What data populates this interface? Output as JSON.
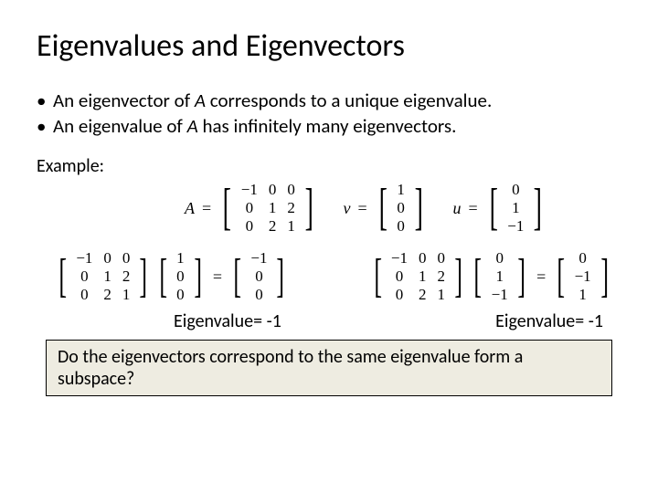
{
  "title": "Eigenvalues and Eigenvectors",
  "bullets": [
    {
      "pre": "An eigenvector of ",
      "mid_italic": "A",
      "post": " corresponds to a unique eigenvalue."
    },
    {
      "pre": "An eigenvalue of ",
      "mid_italic": "A",
      "post": " has infinitely many eigenvectors."
    }
  ],
  "example_label": "Example:",
  "defs": {
    "A_label": "A",
    "A": [
      [
        "−1",
        "0",
        "0"
      ],
      [
        "0",
        "1",
        "2"
      ],
      [
        "0",
        "2",
        "1"
      ]
    ],
    "v_label": "v",
    "v": [
      [
        "1"
      ],
      [
        "0"
      ],
      [
        "0"
      ]
    ],
    "u_label": "u",
    "u": [
      [
        "0"
      ],
      [
        "1"
      ],
      [
        "−1"
      ]
    ]
  },
  "eq1": {
    "M": [
      [
        "−1",
        "0",
        "0"
      ],
      [
        "0",
        "1",
        "2"
      ],
      [
        "0",
        "2",
        "1"
      ]
    ],
    "x": [
      [
        "1"
      ],
      [
        "0"
      ],
      [
        "0"
      ]
    ],
    "r": [
      [
        "−1"
      ],
      [
        "0"
      ],
      [
        "0"
      ]
    ]
  },
  "eq2": {
    "M": [
      [
        "−1",
        "0",
        "0"
      ],
      [
        "0",
        "1",
        "2"
      ],
      [
        "0",
        "2",
        "1"
      ]
    ],
    "x": [
      [
        "0"
      ],
      [
        "1"
      ],
      [
        "−1"
      ]
    ],
    "r": [
      [
        "0"
      ],
      [
        "−1"
      ],
      [
        "1"
      ]
    ]
  },
  "eigen_label_left": "Eigenvalue= -1",
  "eigen_label_right": "Eigenvalue= -1",
  "question": "Do the eigenvectors correspond to the same eigenvalue form a subspace?",
  "style": {
    "bg": "#ffffff",
    "text": "#000000",
    "box_bg": "#eeece1",
    "box_border": "#000000",
    "title_fontsize": 34,
    "body_fontsize": 21,
    "math_fontsize": 17
  }
}
